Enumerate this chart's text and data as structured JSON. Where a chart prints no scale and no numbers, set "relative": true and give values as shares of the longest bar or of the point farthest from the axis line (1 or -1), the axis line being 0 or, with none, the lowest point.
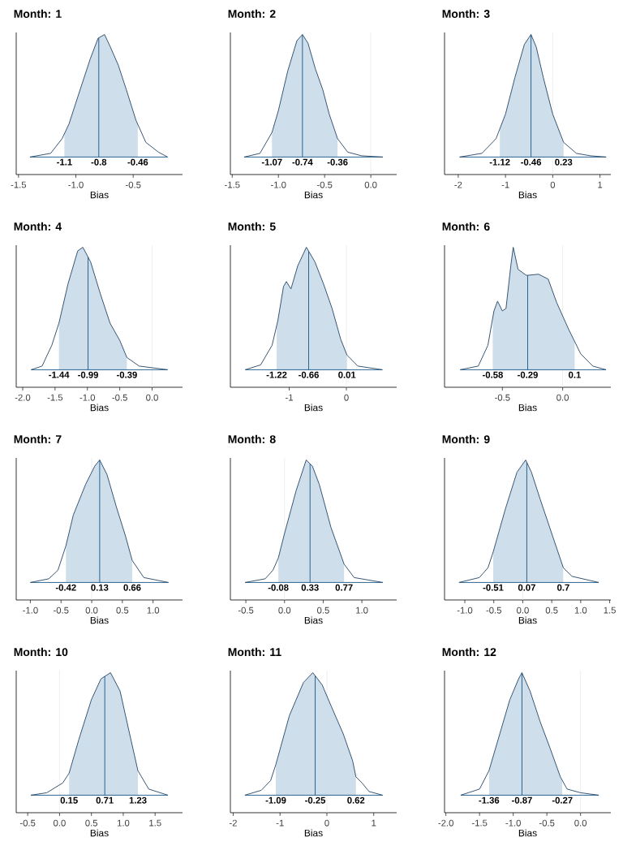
{
  "chart_data": [
    {
      "type": "line",
      "title": "Month: 1",
      "xlabel": "Bias",
      "relative": true,
      "color": "#2b4a6a",
      "xlim": [
        -1.52,
        -0.07
      ],
      "xticks": [
        -1.5,
        {
          "value": -1.0,
          "label": "-1.0"
        },
        -0.5
      ],
      "x": [
        -1.4,
        -1.22,
        -1.12,
        -1.06,
        -0.98,
        -0.875,
        -0.806,
        -0.75,
        -0.7,
        -0.63,
        -0.56,
        -0.476,
        -0.39,
        -0.28,
        -0.2
      ],
      "values": [
        0,
        0.03,
        0.15,
        0.27,
        0.5,
        0.8,
        0.97,
        1.0,
        0.9,
        0.75,
        0.55,
        0.3,
        0.12,
        0.04,
        0
      ],
      "bands": [
        {
          "axis": "x",
          "from": -1.1,
          "to": -0.46,
          "color": "#cedfeb"
        }
      ],
      "ref_lines": [
        {
          "axis": "x",
          "value": -0.8,
          "color": "#1d5a8a"
        }
      ],
      "annotations": [
        {
          "text": "-1.1",
          "x": -1.1,
          "y": 0
        },
        {
          "text": "-0.8",
          "x": -0.8,
          "y": 0
        },
        {
          "text": "-0.46",
          "x": -0.46,
          "y": 0
        }
      ]
    },
    {
      "type": "line",
      "title": "Month: 2",
      "xlabel": "Bias",
      "relative": true,
      "color": "#2b4a6a",
      "xlim": [
        -1.52,
        0.28
      ],
      "xticks": [
        -1.5,
        {
          "value": -1.0,
          "label": "-1.0"
        },
        -0.5,
        {
          "value": 0,
          "label": "0.0"
        }
      ],
      "x": [
        -1.37,
        -1.2,
        -1.07,
        -1.0,
        -0.9,
        -0.8,
        -0.74,
        -0.68,
        -0.6,
        -0.52,
        -0.45,
        -0.36,
        -0.25,
        -0.1,
        0.13
      ],
      "values": [
        0,
        0.03,
        0.2,
        0.38,
        0.7,
        0.95,
        1.0,
        0.93,
        0.72,
        0.55,
        0.35,
        0.15,
        0.04,
        0.01,
        0
      ],
      "bands": [
        {
          "axis": "x",
          "from": -1.07,
          "to": -0.36,
          "color": "#cedfeb"
        }
      ],
      "ref_lines": [
        {
          "axis": "x",
          "value": -0.74,
          "color": "#1d5a8a"
        },
        {
          "axis": "x",
          "value": 0,
          "color": "#e5e5e5"
        }
      ],
      "annotations": [
        {
          "text": "-1.07",
          "x": -1.07,
          "y": 0
        },
        {
          "text": "-0.74",
          "x": -0.74,
          "y": 0
        },
        {
          "text": "-0.36",
          "x": -0.36,
          "y": 0
        }
      ]
    },
    {
      "type": "line",
      "title": "Month: 3",
      "xlabel": "Bias",
      "relative": true,
      "color": "#2b4a6a",
      "xlim": [
        -2.29,
        1.23
      ],
      "xticks": [
        -2,
        -1,
        0,
        1
      ],
      "x": [
        -1.97,
        -1.5,
        -1.2,
        -1.0,
        -0.8,
        -0.6,
        -0.46,
        -0.35,
        -0.2,
        0,
        0.23,
        0.5,
        0.8,
        1.13
      ],
      "values": [
        0,
        0.03,
        0.15,
        0.35,
        0.65,
        0.92,
        1.0,
        0.9,
        0.65,
        0.35,
        0.12,
        0.03,
        0.01,
        0
      ],
      "bands": [
        {
          "axis": "x",
          "from": -1.12,
          "to": 0.23,
          "color": "#cedfeb"
        }
      ],
      "ref_lines": [
        {
          "axis": "x",
          "value": -0.46,
          "color": "#1d5a8a"
        },
        {
          "axis": "x",
          "value": 0,
          "color": "#e5e5e5"
        }
      ],
      "annotations": [
        {
          "text": "-1.12",
          "x": -1.12,
          "y": 0
        },
        {
          "text": "-0.46",
          "x": -0.46,
          "y": 0
        },
        {
          "text": "0.23",
          "x": 0.23,
          "y": 0
        }
      ]
    },
    {
      "type": "line",
      "title": "Month: 4",
      "xlabel": "Bias",
      "relative": true,
      "color": "#2b4a6a",
      "xlim": [
        -2.1,
        0.47
      ],
      "xticks": [
        {
          "value": -2.0,
          "label": "-2.0"
        },
        -1.5,
        {
          "value": -1.0,
          "label": "-1.0"
        },
        -0.5,
        {
          "value": 0,
          "label": "0.0"
        }
      ],
      "x": [
        -1.87,
        -1.7,
        -1.55,
        -1.44,
        -1.3,
        -1.15,
        -1.07,
        -0.95,
        -0.8,
        -0.65,
        -0.5,
        -0.39,
        -0.2,
        0.24
      ],
      "values": [
        0,
        0.03,
        0.2,
        0.38,
        0.7,
        0.97,
        1.0,
        0.88,
        0.62,
        0.38,
        0.24,
        0.1,
        0.03,
        0
      ],
      "bands": [
        {
          "axis": "x",
          "from": -1.44,
          "to": -0.39,
          "color": "#cedfeb"
        }
      ],
      "ref_lines": [
        {
          "axis": "x",
          "value": -0.99,
          "color": "#1d5a8a"
        },
        {
          "axis": "x",
          "value": 0,
          "color": "#e5e5e5"
        }
      ],
      "annotations": [
        {
          "text": "-1.44",
          "x": -1.44,
          "y": 0
        },
        {
          "text": "-0.99",
          "x": -0.99,
          "y": 0
        },
        {
          "text": "-0.39",
          "x": -0.39,
          "y": 0
        }
      ]
    },
    {
      "type": "line",
      "title": "Month: 5",
      "xlabel": "Bias",
      "relative": true,
      "color": "#2b4a6a",
      "xlim": [
        -2.03,
        0.88
      ],
      "xticks": [
        -1,
        0
      ],
      "x": [
        -1.77,
        -1.5,
        -1.3,
        -1.2,
        -1.1,
        -1.05,
        -0.97,
        -0.85,
        -0.7,
        -0.55,
        -0.4,
        -0.25,
        -0.1,
        0.01,
        0.2,
        0.63
      ],
      "values": [
        0,
        0.04,
        0.2,
        0.4,
        0.68,
        0.72,
        0.66,
        0.85,
        1.0,
        0.88,
        0.7,
        0.5,
        0.25,
        0.12,
        0.03,
        0
      ],
      "bands": [
        {
          "axis": "x",
          "from": -1.22,
          "to": 0.01,
          "color": "#cedfeb"
        }
      ],
      "ref_lines": [
        {
          "axis": "x",
          "value": -0.66,
          "color": "#1d5a8a"
        },
        {
          "axis": "x",
          "value": 0,
          "color": "#e5e5e5"
        }
      ],
      "annotations": [
        {
          "text": "-1.22",
          "x": -1.22,
          "y": 0
        },
        {
          "text": "-0.66",
          "x": -0.66,
          "y": 0
        },
        {
          "text": "0.01",
          "x": 0.01,
          "y": 0
        }
      ]
    },
    {
      "type": "line",
      "title": "Month: 6",
      "xlabel": "Bias",
      "relative": true,
      "color": "#2b4a6a",
      "xlim": [
        -0.98,
        0.4
      ],
      "xticks": [
        -0.5,
        {
          "value": 0,
          "label": "0.0"
        }
      ],
      "x": [
        -0.85,
        -0.7,
        -0.62,
        -0.57,
        -0.54,
        -0.5,
        -0.47,
        -0.43,
        -0.41,
        -0.37,
        -0.3,
        -0.2,
        -0.12,
        -0.05,
        0.05,
        0.15,
        0.25,
        0.36
      ],
      "values": [
        0,
        0.03,
        0.2,
        0.48,
        0.56,
        0.48,
        0.5,
        0.85,
        1.0,
        0.82,
        0.77,
        0.78,
        0.74,
        0.55,
        0.33,
        0.13,
        0.03,
        0
      ],
      "bands": [
        {
          "axis": "x",
          "from": -0.58,
          "to": 0.1,
          "color": "#cedfeb"
        }
      ],
      "ref_lines": [
        {
          "axis": "x",
          "value": -0.29,
          "color": "#1d5a8a"
        },
        {
          "axis": "x",
          "value": 0,
          "color": "#e5e5e5"
        }
      ],
      "annotations": [
        {
          "text": "-0.58",
          "x": -0.58,
          "y": 0
        },
        {
          "text": "-0.29",
          "x": -0.29,
          "y": 0
        },
        {
          "text": "0.1",
          "x": 0.1,
          "y": 0
        }
      ]
    },
    {
      "type": "line",
      "title": "Month: 7",
      "xlabel": "Bias",
      "relative": true,
      "color": "#2b4a6a",
      "xlim": [
        -1.23,
        1.48
      ],
      "xticks": [
        {
          "value": -1.0,
          "label": "-1.0"
        },
        -0.5,
        {
          "value": 0,
          "label": "0.0"
        },
        0.5,
        {
          "value": 1.0,
          "label": "1.0"
        }
      ],
      "x": [
        -1.0,
        -0.7,
        -0.55,
        -0.42,
        -0.3,
        -0.1,
        0.05,
        0.13,
        0.25,
        0.4,
        0.55,
        0.66,
        0.85,
        1.25
      ],
      "values": [
        0,
        0.03,
        0.1,
        0.3,
        0.55,
        0.8,
        0.95,
        1.0,
        0.88,
        0.62,
        0.38,
        0.18,
        0.04,
        0
      ],
      "bands": [
        {
          "axis": "x",
          "from": -0.42,
          "to": 0.66,
          "color": "#cedfeb"
        }
      ],
      "ref_lines": [
        {
          "axis": "x",
          "value": 0.13,
          "color": "#1d5a8a"
        },
        {
          "axis": "x",
          "value": 0,
          "color": "#e5e5e5"
        }
      ],
      "annotations": [
        {
          "text": "-0.42",
          "x": -0.42,
          "y": 0
        },
        {
          "text": "0.13",
          "x": 0.13,
          "y": 0
        },
        {
          "text": "0.66",
          "x": 0.66,
          "y": 0
        }
      ]
    },
    {
      "type": "line",
      "title": "Month: 8",
      "xlabel": "Bias",
      "relative": true,
      "color": "#2b4a6a",
      "xlim": [
        -0.7,
        1.45
      ],
      "xticks": [
        -0.5,
        {
          "value": 0,
          "label": "0.0"
        },
        0.5,
        {
          "value": 1.0,
          "label": "1.0"
        }
      ],
      "x": [
        -0.51,
        -0.25,
        -0.15,
        -0.08,
        0,
        0.15,
        0.28,
        0.36,
        0.45,
        0.6,
        0.77,
        0.9,
        1.27
      ],
      "values": [
        0,
        0.03,
        0.1,
        0.2,
        0.4,
        0.75,
        1.0,
        0.95,
        0.8,
        0.45,
        0.15,
        0.04,
        0
      ],
      "bands": [
        {
          "axis": "x",
          "from": -0.08,
          "to": 0.77,
          "color": "#cedfeb"
        }
      ],
      "ref_lines": [
        {
          "axis": "x",
          "value": 0.33,
          "color": "#1d5a8a"
        },
        {
          "axis": "x",
          "value": 0,
          "color": "#e5e5e5"
        }
      ],
      "annotations": [
        {
          "text": "-0.08",
          "x": -0.08,
          "y": 0
        },
        {
          "text": "0.33",
          "x": 0.33,
          "y": 0
        },
        {
          "text": "0.77",
          "x": 0.77,
          "y": 0
        }
      ]
    },
    {
      "type": "line",
      "title": "Month: 9",
      "xlabel": "Bias",
      "relative": true,
      "color": "#2b4a6a",
      "xlim": [
        -1.35,
        1.52
      ],
      "xticks": [
        {
          "value": -1.0,
          "label": "-1.0"
        },
        -0.5,
        {
          "value": 0,
          "label": "0.0"
        },
        0.5,
        {
          "value": 1.0,
          "label": "1.0"
        },
        1.5
      ],
      "x": [
        -1.1,
        -0.75,
        -0.6,
        -0.51,
        -0.3,
        -0.1,
        0.05,
        0.15,
        0.3,
        0.5,
        0.7,
        0.85,
        1.31
      ],
      "values": [
        0,
        0.04,
        0.12,
        0.25,
        0.6,
        0.9,
        1.0,
        0.9,
        0.68,
        0.4,
        0.12,
        0.05,
        0
      ],
      "bands": [
        {
          "axis": "x",
          "from": -0.51,
          "to": 0.7,
          "color": "#cedfeb"
        }
      ],
      "ref_lines": [
        {
          "axis": "x",
          "value": 0.07,
          "color": "#1d5a8a"
        },
        {
          "axis": "x",
          "value": 0,
          "color": "#e5e5e5"
        }
      ],
      "annotations": [
        {
          "text": "-0.51",
          "x": -0.51,
          "y": 0
        },
        {
          "text": "0.07",
          "x": 0.07,
          "y": 0
        },
        {
          "text": "0.7",
          "x": 0.7,
          "y": 0
        }
      ]
    },
    {
      "type": "line",
      "title": "Month: 10",
      "xlabel": "Bias",
      "relative": true,
      "color": "#2b4a6a",
      "xlim": [
        -0.68,
        1.93
      ],
      "xticks": [
        -0.5,
        {
          "value": 0,
          "label": "0.0"
        },
        0.5,
        {
          "value": 1.0,
          "label": "1.0"
        },
        1.5
      ],
      "x": [
        -0.45,
        -0.2,
        0.05,
        0.15,
        0.3,
        0.5,
        0.65,
        0.71,
        0.8,
        0.95,
        1.1,
        1.23,
        1.4,
        1.7
      ],
      "values": [
        0,
        0.02,
        0.1,
        0.18,
        0.45,
        0.78,
        0.95,
        0.97,
        1.0,
        0.85,
        0.5,
        0.2,
        0.05,
        0
      ],
      "bands": [
        {
          "axis": "x",
          "from": 0.15,
          "to": 1.23,
          "color": "#cedfeb"
        }
      ],
      "ref_lines": [
        {
          "axis": "x",
          "value": 0.71,
          "color": "#1d5a8a"
        },
        {
          "axis": "x",
          "value": 0,
          "color": "#e5e5e5"
        }
      ],
      "annotations": [
        {
          "text": "0.15",
          "x": 0.15,
          "y": 0
        },
        {
          "text": "0.71",
          "x": 0.71,
          "y": 0
        },
        {
          "text": "1.23",
          "x": 1.23,
          "y": 0
        }
      ]
    },
    {
      "type": "line",
      "title": "Month: 11",
      "xlabel": "Bias",
      "relative": true,
      "color": "#2b4a6a",
      "xlim": [
        -2.06,
        1.49
      ],
      "xticks": [
        -2,
        -1,
        0,
        1
      ],
      "x": [
        -1.75,
        -1.4,
        -1.2,
        -1.09,
        -0.8,
        -0.5,
        -0.3,
        -0.1,
        0.1,
        0.35,
        0.55,
        0.62,
        0.75,
        0.9,
        1.19
      ],
      "values": [
        0,
        0.04,
        0.12,
        0.25,
        0.65,
        0.92,
        1.0,
        0.9,
        0.72,
        0.5,
        0.28,
        0.15,
        0.1,
        0.03,
        0
      ],
      "bands": [
        {
          "axis": "x",
          "from": -1.09,
          "to": 0.62,
          "color": "#cedfeb"
        }
      ],
      "ref_lines": [
        {
          "axis": "x",
          "value": -0.25,
          "color": "#1d5a8a"
        },
        {
          "axis": "x",
          "value": 0,
          "color": "#e5e5e5"
        }
      ],
      "annotations": [
        {
          "text": "-1.09",
          "x": -1.09,
          "y": 0
        },
        {
          "text": "-0.25",
          "x": -0.25,
          "y": 0
        },
        {
          "text": "0.62",
          "x": 0.62,
          "y": 0
        }
      ]
    },
    {
      "type": "line",
      "title": "Month: 12",
      "xlabel": "Bias",
      "relative": true,
      "color": "#2b4a6a",
      "xlim": [
        -2.02,
        0.45
      ],
      "xticks": [
        {
          "value": -2.0,
          "label": "-2.0"
        },
        -1.5,
        {
          "value": -1.0,
          "label": "-1.0"
        },
        -0.5,
        {
          "value": 0,
          "label": "0.0"
        }
      ],
      "x": [
        -1.78,
        -1.5,
        -1.36,
        -1.2,
        -1.05,
        -0.92,
        -0.87,
        -0.75,
        -0.6,
        -0.45,
        -0.3,
        -0.2,
        0,
        0.27
      ],
      "values": [
        0,
        0.05,
        0.2,
        0.5,
        0.78,
        0.95,
        1.0,
        0.85,
        0.6,
        0.38,
        0.15,
        0.05,
        0.02,
        0
      ],
      "bands": [
        {
          "axis": "x",
          "from": -1.36,
          "to": -0.27,
          "color": "#cedfeb"
        }
      ],
      "ref_lines": [
        {
          "axis": "x",
          "value": -0.87,
          "color": "#1d5a8a"
        },
        {
          "axis": "x",
          "value": 0,
          "color": "#e5e5e5"
        }
      ],
      "annotations": [
        {
          "text": "-1.36",
          "x": -1.36,
          "y": 0
        },
        {
          "text": "-0.87",
          "x": -0.87,
          "y": 0
        },
        {
          "text": "-0.27",
          "x": -0.27,
          "y": 0
        }
      ]
    }
  ]
}
